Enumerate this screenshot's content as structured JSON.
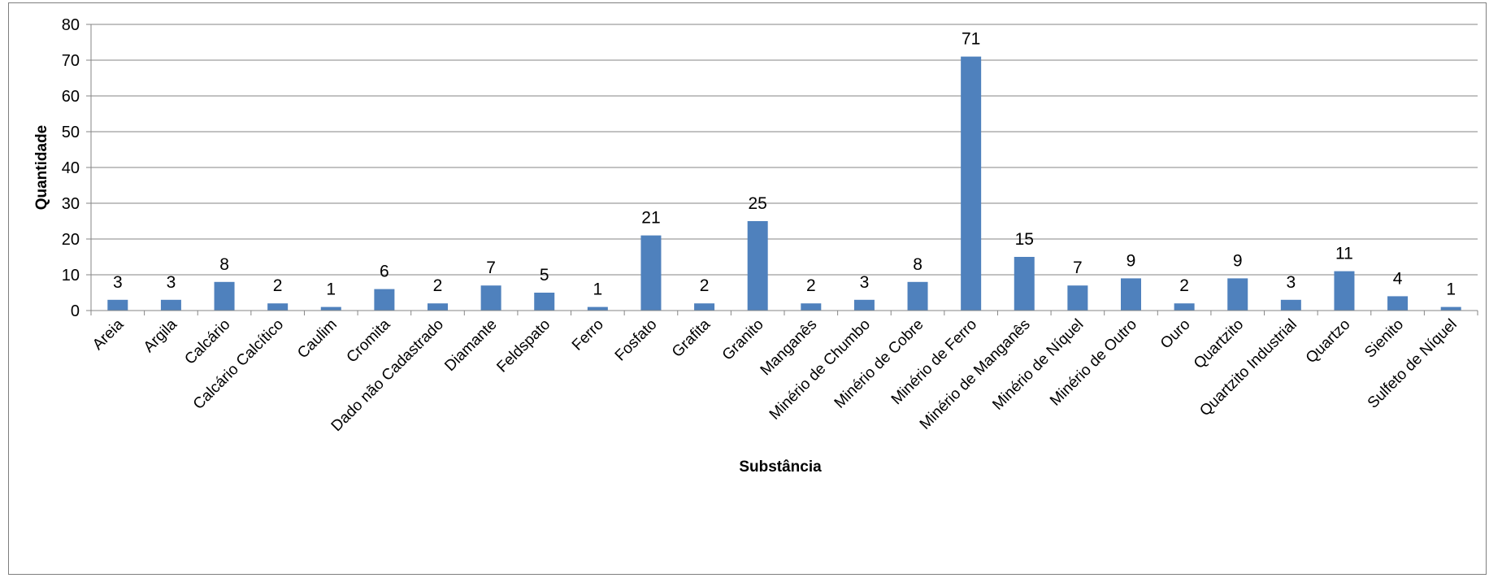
{
  "chart_data": {
    "type": "bar",
    "title": "",
    "xlabel": "Substância",
    "ylabel": "Quantidade",
    "ylim": [
      0,
      80
    ],
    "yticks": [
      0,
      10,
      20,
      30,
      40,
      50,
      60,
      70,
      80
    ],
    "grid": true,
    "legend": "none",
    "bar_color": "#4f81bd",
    "categories": [
      "Areia",
      "Argila",
      "Calcário",
      "Calcário Calcítico",
      "Caulim",
      "Cromita",
      "Dado não Cadastrado",
      "Diamante",
      "Feldspato",
      "Ferro",
      "Fosfato",
      "Grafita",
      "Granito",
      "Manganês",
      "Minério de Chumbo",
      "Minério de Cobre",
      "Minério de Ferro",
      "Minério de Manganês",
      "Minério de Níquel",
      "Minério de Outro",
      "Ouro",
      "Quartzito",
      "Quartzito Industrial",
      "Quartzo",
      "Sienito",
      "Sulfeto de Níquel"
    ],
    "values": [
      3,
      3,
      8,
      2,
      1,
      6,
      2,
      7,
      5,
      1,
      21,
      2,
      25,
      2,
      3,
      8,
      71,
      15,
      7,
      9,
      2,
      9,
      3,
      11,
      4,
      1
    ]
  }
}
